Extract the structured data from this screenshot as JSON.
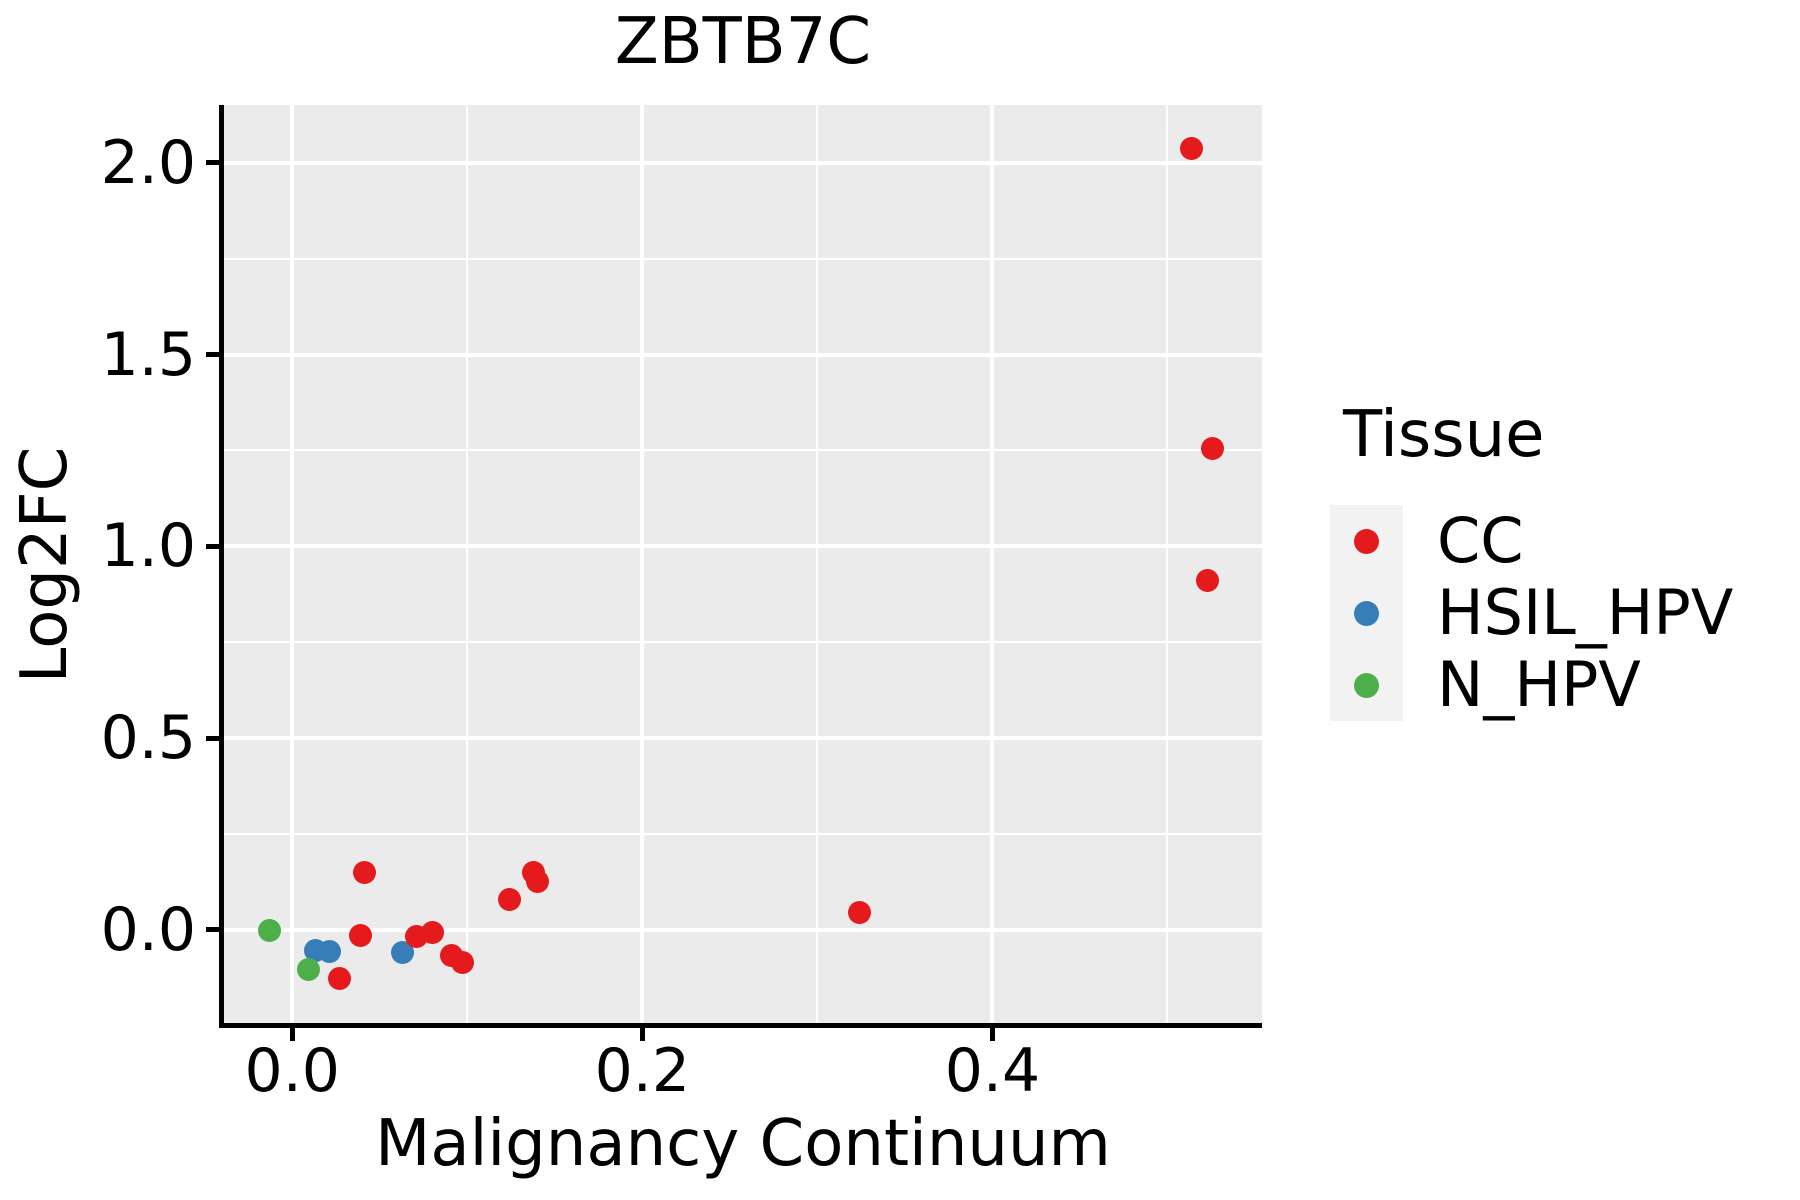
{
  "chart_data": {
    "type": "scatter",
    "title": "ZBTB7C",
    "xlabel": "Malignancy Continuum",
    "ylabel": "Log2FC",
    "xlim": [
      -0.039,
      0.554
    ],
    "ylim": [
      -0.243,
      2.151
    ],
    "x_major_ticks": [
      0.0,
      0.2,
      0.4
    ],
    "x_tick_labels": [
      "0.0",
      "0.2",
      "0.4"
    ],
    "x_minor_ticks": [
      0.1,
      0.3,
      0.5
    ],
    "y_major_ticks": [
      0.0,
      0.5,
      1.0,
      1.5,
      2.0
    ],
    "y_tick_labels": [
      "0.0",
      "0.5",
      "1.0",
      "1.5",
      "2.0"
    ],
    "y_minor_ticks": [
      0.25,
      0.75,
      1.25,
      1.75
    ],
    "grid": true,
    "panel_background": "#EBEBEB",
    "gridline_color": "#FFFFFF",
    "legend_title": "Tissue",
    "legend_position": "right",
    "draw_order": [
      "HSIL_HPV",
      "N_HPV",
      "CC"
    ],
    "series": [
      {
        "name": "CC",
        "color": "#E41A1C",
        "points": [
          [
            0.041,
            0.15
          ],
          [
            0.039,
            -0.016
          ],
          [
            0.027,
            -0.128
          ],
          [
            0.071,
            -0.018
          ],
          [
            0.08,
            -0.008
          ],
          [
            0.091,
            -0.068
          ],
          [
            0.097,
            -0.086
          ],
          [
            0.124,
            0.078
          ],
          [
            0.138,
            0.15
          ],
          [
            0.14,
            0.125
          ],
          [
            0.324,
            0.044
          ],
          [
            0.514,
            2.037
          ],
          [
            0.526,
            1.254
          ],
          [
            0.523,
            0.912
          ]
        ]
      },
      {
        "name": "HSIL_HPV",
        "color": "#377EB8",
        "points": [
          [
            0.013,
            -0.055
          ],
          [
            0.021,
            -0.057
          ],
          [
            0.063,
            -0.058
          ]
        ]
      },
      {
        "name": "N_HPV",
        "color": "#4DAF4A",
        "points": [
          [
            -0.013,
            -0.002
          ],
          [
            0.009,
            -0.104
          ]
        ]
      }
    ]
  }
}
